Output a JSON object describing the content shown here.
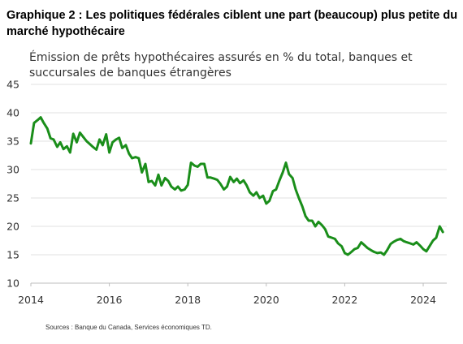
{
  "chart_data": {
    "type": "line",
    "title": "Graphique 2 : Les politiques fédérales ciblent une part (beaucoup) plus petite du marché hypothécaire",
    "subtitle": "Émission de prêts hypothécaires assurés en % du total, banques et succursales de banques étrangères",
    "source": "Sources : Banque du Canada, Services économiques TD.",
    "xlabel": "",
    "ylabel": "",
    "xlim": [
      2014,
      2024.6
    ],
    "ylim": [
      10,
      45
    ],
    "yticks": [
      "10",
      "15",
      "20",
      "25",
      "30",
      "35",
      "40",
      "45"
    ],
    "xticks": [
      "2014",
      "2016",
      "2018",
      "2020",
      "2022",
      "2024"
    ],
    "grid": true,
    "line_color": "#1a8e1a",
    "series": [
      {
        "x": [
          2014.0,
          2014.08,
          2014.17,
          2014.25,
          2014.33,
          2014.42,
          2014.5,
          2014.58,
          2014.67,
          2014.75,
          2014.83,
          2014.92,
          2015.0,
          2015.08,
          2015.17,
          2015.25,
          2015.33,
          2015.42,
          2015.5,
          2015.58,
          2015.67,
          2015.75,
          2015.83,
          2015.92,
          2016.0,
          2016.08,
          2016.17,
          2016.25,
          2016.33,
          2016.42,
          2016.5,
          2016.58,
          2016.67,
          2016.75,
          2016.83,
          2016.92,
          2017.0,
          2017.08,
          2017.17,
          2017.25,
          2017.33,
          2017.42,
          2017.5,
          2017.58,
          2017.67,
          2017.75,
          2017.83,
          2017.92,
          2018.0,
          2018.08,
          2018.17,
          2018.25,
          2018.33,
          2018.42,
          2018.5,
          2018.58,
          2018.67,
          2018.75,
          2018.83,
          2018.92,
          2019.0,
          2019.08,
          2019.17,
          2019.25,
          2019.33,
          2019.42,
          2019.5,
          2019.58,
          2019.67,
          2019.75,
          2019.83,
          2019.92,
          2020.0,
          2020.08,
          2020.17,
          2020.25,
          2020.33,
          2020.42,
          2020.5,
          2020.58,
          2020.67,
          2020.75,
          2020.83,
          2020.92,
          2021.0,
          2021.08,
          2021.17,
          2021.25,
          2021.33,
          2021.42,
          2021.5,
          2021.58,
          2021.67,
          2021.75,
          2021.83,
          2021.92,
          2022.0,
          2022.08,
          2022.17,
          2022.25,
          2022.33,
          2022.42,
          2022.5,
          2022.58,
          2022.67,
          2022.75,
          2022.83,
          2022.92,
          2023.0,
          2023.08,
          2023.17,
          2023.25,
          2023.33,
          2023.42,
          2023.5,
          2023.58,
          2023.67,
          2023.75,
          2023.83,
          2023.92,
          2024.0,
          2024.08,
          2024.17,
          2024.25,
          2024.33,
          2024.42,
          2024.5
        ],
        "y": [
          34.6,
          38.2,
          38.7,
          39.2,
          38.2,
          37.2,
          35.5,
          35.3,
          34.0,
          34.8,
          33.6,
          34.1,
          33.0,
          36.3,
          34.8,
          36.5,
          35.8,
          35.0,
          34.5,
          34.0,
          33.5,
          35.3,
          34.3,
          36.2,
          33.0,
          34.8,
          35.3,
          35.6,
          33.8,
          34.3,
          32.8,
          32.0,
          32.2,
          32.0,
          29.5,
          31.0,
          27.8,
          28.0,
          27.2,
          29.1,
          27.2,
          28.5,
          28.0,
          27.0,
          26.5,
          27.0,
          26.3,
          26.5,
          27.3,
          31.2,
          30.7,
          30.5,
          31.0,
          31.0,
          28.6,
          28.6,
          28.4,
          28.2,
          27.5,
          26.5,
          27.0,
          28.7,
          27.8,
          28.4,
          27.6,
          28.1,
          27.2,
          26.0,
          25.4,
          26.0,
          25.0,
          25.4,
          24.0,
          24.5,
          26.2,
          26.5,
          28.0,
          29.5,
          31.2,
          29.2,
          28.5,
          26.5,
          25.0,
          23.5,
          21.8,
          21.0,
          21.0,
          20.0,
          20.8,
          20.2,
          19.5,
          18.2,
          18.0,
          17.8,
          17.0,
          16.5,
          15.3,
          15.0,
          15.5,
          16.0,
          16.2,
          17.2,
          16.7,
          16.2,
          15.8,
          15.5,
          15.3,
          15.4,
          15.0,
          15.8,
          16.9,
          17.3,
          17.6,
          17.8,
          17.4,
          17.2,
          17.0,
          16.8,
          17.2,
          16.6,
          16.0,
          15.6,
          16.6,
          17.5,
          18.0,
          20.0,
          19.0
        ]
      }
    ]
  }
}
